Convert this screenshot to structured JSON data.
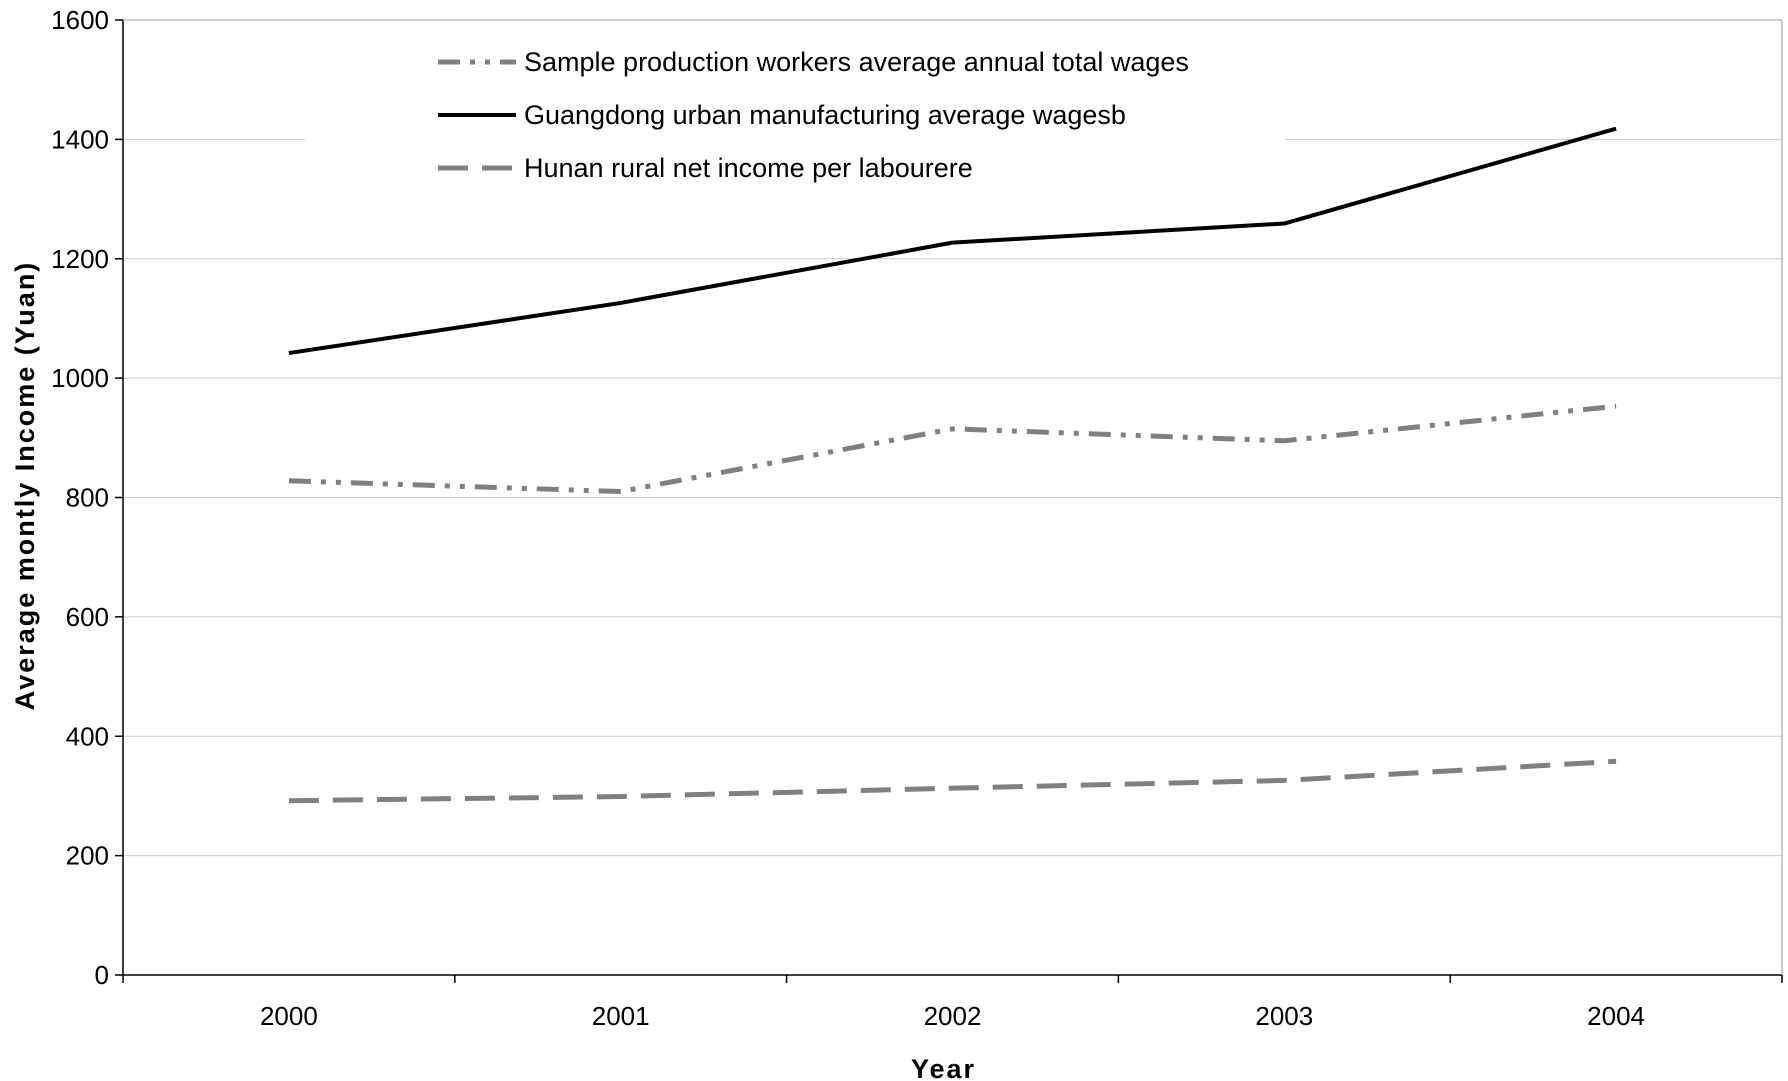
{
  "chart_data": {
    "type": "line",
    "title": "",
    "xlabel": "Year",
    "ylabel": "Average montly Income (Yuan)",
    "categories": [
      "2000",
      "2001",
      "2002",
      "2003",
      "2004"
    ],
    "ylim": [
      0,
      1600
    ],
    "yticks": [
      0,
      200,
      400,
      600,
      800,
      1000,
      1200,
      1400,
      1600
    ],
    "grid": true,
    "legend_position": "top-center",
    "series": [
      {
        "name": "Sample production workers average annual total  wages",
        "values": [
          828,
          810,
          915,
          895,
          953
        ],
        "style": "dash-dot-dot",
        "color": "#808080"
      },
      {
        "name": "Guangdong urban manufacturing average wagesb",
        "values": [
          1042,
          1126,
          1227,
          1259,
          1418
        ],
        "style": "solid",
        "color": "#000000"
      },
      {
        "name": "Hunan rural net income per labourere",
        "values": [
          292,
          299,
          313,
          326,
          358
        ],
        "style": "dashed",
        "color": "#808080"
      }
    ]
  }
}
